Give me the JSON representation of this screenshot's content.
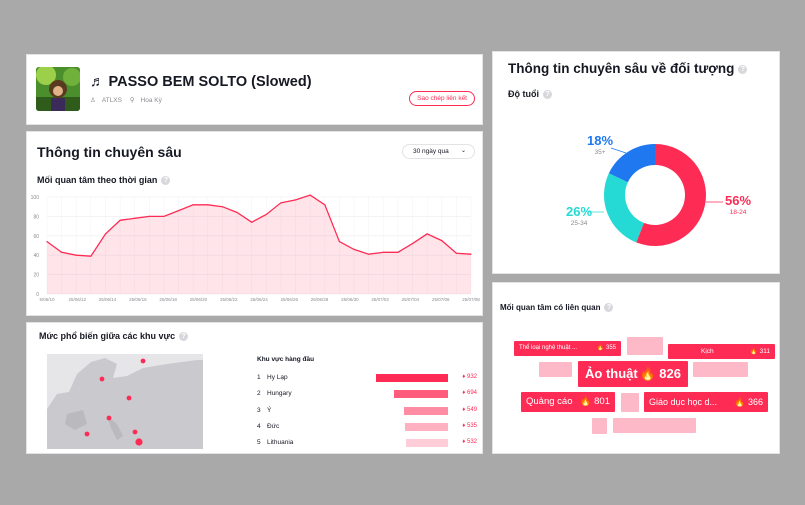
{
  "song": {
    "title": "♬ PASSO BEM SOLTO (Slowed)",
    "artist": "ATLXS",
    "country": "Hoa Kỳ",
    "copy_link_label": "Sao chép liên kết"
  },
  "insights": {
    "title": "Thông tin chuyên sâu",
    "period": "30 ngày qua",
    "interest_title": "Mối quan tâm theo thời gian"
  },
  "chart_data": {
    "type": "area",
    "title": "Mối quan tâm theo thời gian",
    "x_tick_labels": [
      "5/06/10",
      "25/06/12",
      "25/06/14",
      "25/06/16",
      "25/06/18",
      "25/06/20",
      "25/06/22",
      "25/06/24",
      "25/06/26",
      "25/06/28",
      "25/06/30",
      "25/07/02",
      "25/07/04",
      "25/07/06",
      "25/07/08"
    ],
    "y_ticks": [
      0,
      20,
      40,
      60,
      80,
      100
    ],
    "ylim": [
      0,
      100
    ],
    "grid": true,
    "color": "#fe2c55",
    "values": [
      54,
      43,
      40,
      39,
      62,
      76,
      78,
      80,
      80,
      86,
      92,
      92,
      90,
      84,
      74,
      82,
      94,
      97,
      102,
      92,
      54,
      46,
      41,
      43,
      43,
      52,
      62,
      55,
      42,
      41
    ]
  },
  "region": {
    "title": "Mức phổ biến giữa các khu vực",
    "top_header": "Khu vực hàng đầu",
    "rows": [
      {
        "rank": "1",
        "name": "Hy Lạp",
        "value": "932",
        "score": 932,
        "color": "#fe2c55"
      },
      {
        "rank": "2",
        "name": "Hungary",
        "value": "694",
        "score": 694,
        "color": "#ff5b7c"
      },
      {
        "rank": "3",
        "name": "Ý",
        "value": "549",
        "score": 549,
        "color": "#ff8ca3"
      },
      {
        "rank": "4",
        "name": "Đức",
        "value": "535",
        "score": 535,
        "color": "#ffb1c2"
      },
      {
        "rank": "5",
        "name": "Lithuania",
        "value": "532",
        "score": 532,
        "color": "#ffcdd8"
      }
    ]
  },
  "audience": {
    "title": "Thông tin chuyên sâu về đối tượng",
    "age_title": "Độ tuổi",
    "segments": [
      {
        "label": "56%",
        "range": "18-24",
        "share": 56,
        "color": "#fe2c55"
      },
      {
        "label": "26%",
        "range": "25-34",
        "share": 26,
        "color": "#25d9d4"
      },
      {
        "label": "18%",
        "range": "35+",
        "share": 18,
        "color": "#1f78f0"
      }
    ]
  },
  "interests": {
    "title": "Mối quan tâm có liên quan",
    "chips": [
      {
        "label": "Thể loại nghệ thuật ...",
        "value": "355"
      },
      {
        "label": "Kịch",
        "value": "311"
      },
      {
        "label": "Ảo thuật",
        "value": "826"
      },
      {
        "label": "Quảng cáo",
        "value": "801"
      },
      {
        "label": "Giáo dục học d...",
        "value": "366"
      }
    ]
  }
}
